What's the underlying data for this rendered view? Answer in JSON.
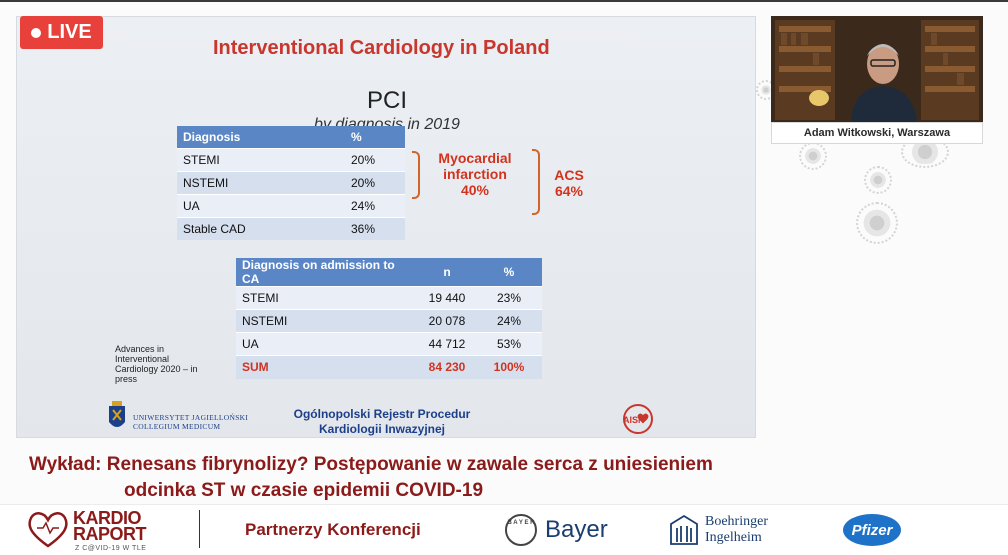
{
  "stream": {
    "live_badge": "LIVE"
  },
  "slide": {
    "title": "Interventional Cardiology in Poland",
    "heading": "PCI",
    "subheading": "by diagnosis in 2019",
    "table1": {
      "headers": [
        "Diagnosis",
        "%"
      ],
      "rows": [
        [
          "STEMI",
          "20%"
        ],
        [
          "NSTEMI",
          "20%"
        ],
        [
          "UA",
          "24%"
        ],
        [
          "Stable CAD",
          "36%"
        ]
      ]
    },
    "mi_label": "Myocardial infarction 40%",
    "mi_line1": "Myocardial",
    "mi_line2": "infarction",
    "mi_line3": "40%",
    "acs_line1": "ACS",
    "acs_line2": "64%",
    "table2": {
      "headers": [
        "Diagnosis on admission to CA",
        "n",
        "%"
      ],
      "rows": [
        [
          "STEMI",
          "19 440",
          "23%"
        ],
        [
          "NSTEMI",
          "20 078",
          "24%"
        ],
        [
          "UA",
          "44 712",
          "53%"
        ]
      ],
      "sum": [
        "SUM",
        "84 230",
        "100%"
      ]
    },
    "citation": "Advances in Interventional Cardiology 2020 – in press",
    "uj_line1": "UNIWERSYTET JAGIELLOŃSKI",
    "uj_line2": "COLLEGIUM MEDICUM",
    "registry_line1": "Ogólnopolski Rejestr Procedur",
    "registry_line2": "Kardiologii Inwazyjnej",
    "aisn_logo_text": "AISN"
  },
  "speaker": {
    "caption": "Adam Witkowski, Warszawa"
  },
  "lecture": {
    "line1": "Wykład: Renesans fibrynolizy? Postępowanie w zawale serca z uniesieniem",
    "line2": "odcinka ST w czasie epidemii COVID-19"
  },
  "footer": {
    "brand_line1": "KARDIO",
    "brand_line2": "RAPORT",
    "brand_sub": "Z C@VID-19 W TLE",
    "partners": "Partnerzy Konferencji",
    "bayer": "Bayer",
    "bayer_cross": "B A Y E R",
    "boehringer_line1": "Boehringer",
    "boehringer_line2": "Ingelheim",
    "pfizer": "Pfizer"
  },
  "colors": {
    "live": "#e8413b",
    "title_red": "#c8372d",
    "table_header": "#5b86c6",
    "bracket_orange": "#d0642b",
    "lecture_maroon": "#8b1a1a",
    "registry_blue": "#1c3f8a"
  }
}
